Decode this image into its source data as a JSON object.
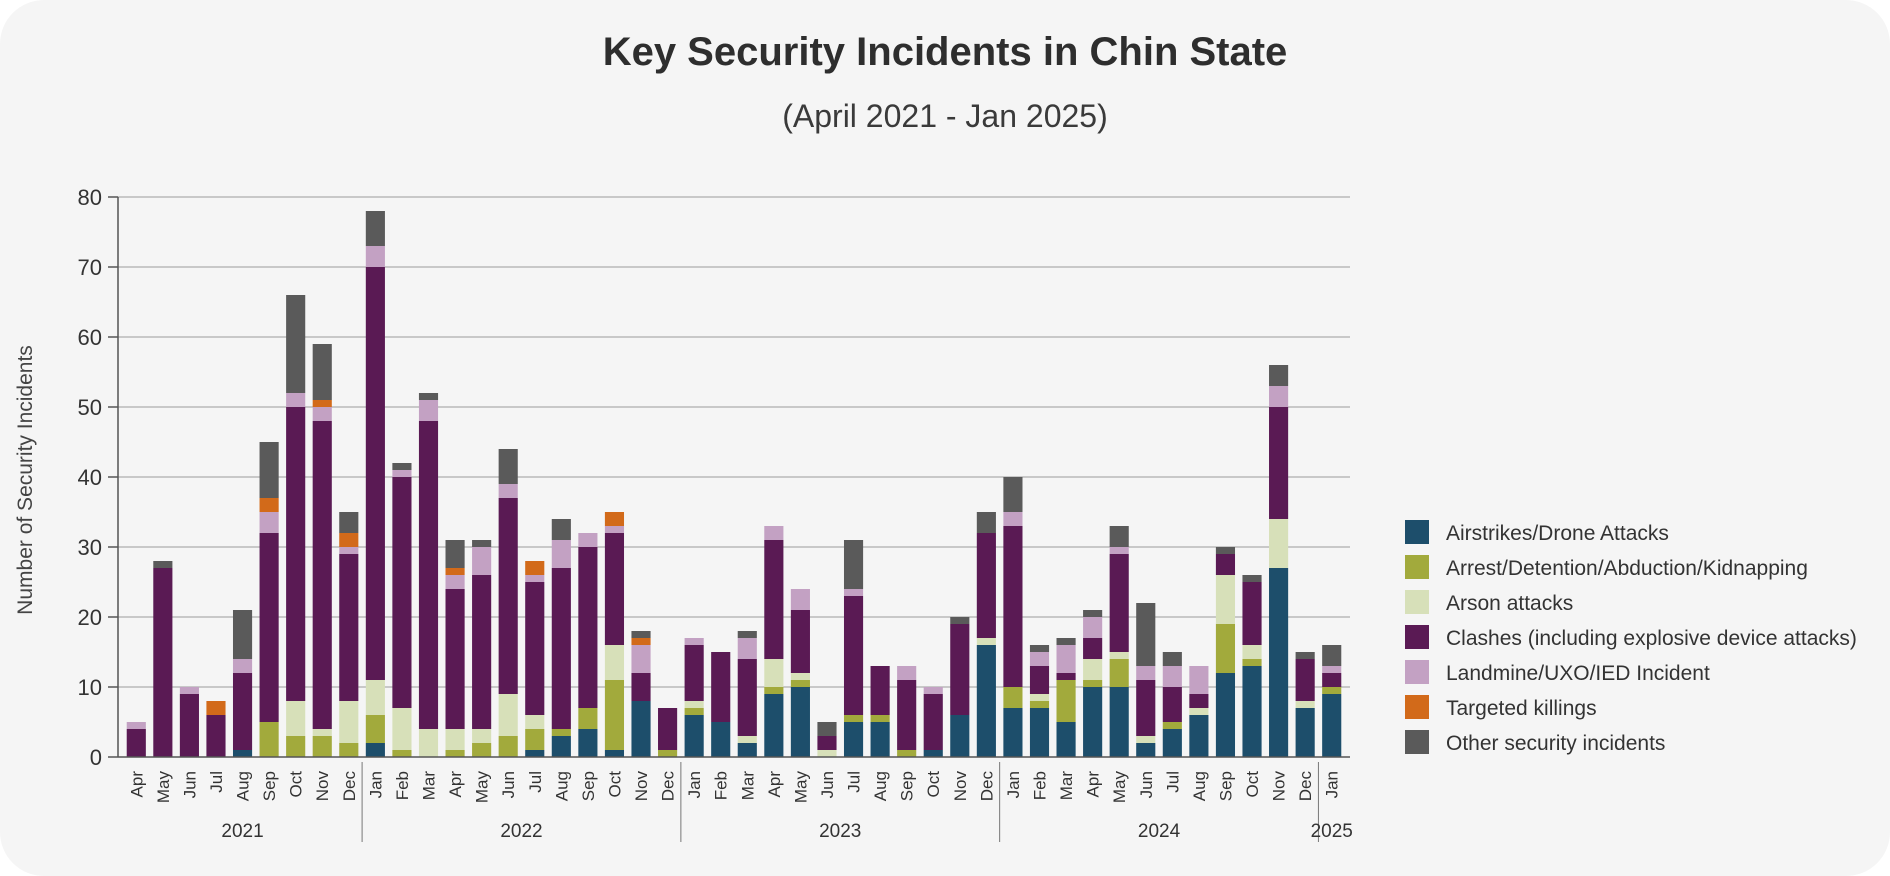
{
  "title": "Key Security Incidents in Chin State",
  "subtitle": "(April 2021 - Jan 2025)",
  "chart_data": {
    "type": "bar",
    "stacked": true,
    "title": "Key Security Incidents in Chin State",
    "subtitle": "(April 2021 - Jan 2025)",
    "xlabel": "",
    "ylabel": "Number of Security Incidents",
    "ylim": [
      0,
      80
    ],
    "yticks": [
      0,
      10,
      20,
      30,
      40,
      50,
      60,
      70,
      80
    ],
    "grid": true,
    "legend_position": "right",
    "categories": [
      "Apr",
      "May",
      "Jun",
      "Jul",
      "Aug",
      "Sep",
      "Oct",
      "Nov",
      "Dec",
      "Jan",
      "Feb",
      "Mar",
      "Apr",
      "May",
      "Jun",
      "Jul",
      "Aug",
      "Sep",
      "Oct",
      "Nov",
      "Dec",
      "Jan",
      "Feb",
      "Mar",
      "Apr",
      "May",
      "Jun",
      "Jul",
      "Aug",
      "Sep",
      "Oct",
      "Nov",
      "Dec",
      "Jan",
      "Feb",
      "Mar",
      "Apr",
      "May",
      "Jun",
      "Jul",
      "Aug",
      "Sep",
      "Oct",
      "Nov",
      "Dec",
      "Jan"
    ],
    "year_groups": [
      {
        "label": "2021",
        "count": 9
      },
      {
        "label": "2022",
        "count": 12
      },
      {
        "label": "2023",
        "count": 12
      },
      {
        "label": "2024",
        "count": 12
      },
      {
        "label": "2025",
        "count": 1
      }
    ],
    "series": [
      {
        "name": "Airstrikes/Drone Attacks",
        "color": "#1d4e6b",
        "values": [
          0,
          0,
          0,
          0,
          1,
          0,
          0,
          0,
          0,
          2,
          0,
          0,
          0,
          0,
          0,
          1,
          3,
          4,
          1,
          8,
          0,
          6,
          5,
          2,
          9,
          10,
          0,
          5,
          5,
          0,
          1,
          6,
          16,
          7,
          7,
          5,
          10,
          10,
          2,
          4,
          6,
          12,
          13,
          27,
          7,
          9
        ]
      },
      {
        "name": "Arrest/Detention/Abduction/Kidnapping",
        "color": "#a2aa3c",
        "values": [
          0,
          0,
          0,
          0,
          0,
          5,
          3,
          3,
          2,
          4,
          1,
          0,
          1,
          2,
          3,
          3,
          1,
          3,
          10,
          0,
          1,
          1,
          0,
          0,
          1,
          1,
          0,
          1,
          1,
          1,
          0,
          0,
          0,
          3,
          1,
          6,
          1,
          4,
          0,
          1,
          0,
          7,
          1,
          0,
          0,
          1
        ]
      },
      {
        "name": "Arson attacks",
        "color": "#d7e0b9",
        "values": [
          0,
          0,
          0,
          0,
          0,
          0,
          5,
          1,
          6,
          5,
          6,
          4,
          3,
          2,
          6,
          2,
          0,
          0,
          5,
          0,
          0,
          1,
          0,
          1,
          4,
          1,
          1,
          0,
          0,
          0,
          0,
          0,
          1,
          0,
          1,
          0,
          3,
          1,
          1,
          0,
          1,
          7,
          2,
          7,
          1,
          0
        ]
      },
      {
        "name": "Clashes (including explosive device attacks)",
        "color": "#5a1a54",
        "values": [
          4,
          27,
          9,
          6,
          11,
          27,
          42,
          44,
          21,
          59,
          33,
          44,
          20,
          22,
          28,
          19,
          23,
          23,
          16,
          4,
          6,
          8,
          10,
          11,
          17,
          9,
          2,
          17,
          7,
          10,
          8,
          13,
          15,
          23,
          4,
          1,
          3,
          14,
          8,
          5,
          2,
          3,
          9,
          16,
          6,
          2
        ]
      },
      {
        "name": "Landmine/UXO/IED Incident",
        "color": "#c3a1c3",
        "values": [
          1,
          0,
          1,
          0,
          2,
          3,
          2,
          2,
          1,
          3,
          1,
          3,
          2,
          4,
          2,
          1,
          4,
          2,
          1,
          4,
          0,
          1,
          0,
          3,
          2,
          3,
          0,
          1,
          0,
          2,
          1,
          0,
          0,
          2,
          2,
          4,
          3,
          1,
          2,
          3,
          4,
          0,
          0,
          3,
          0,
          1
        ]
      },
      {
        "name": "Targeted killings",
        "color": "#d26a1a",
        "values": [
          0,
          0,
          0,
          2,
          0,
          2,
          0,
          1,
          2,
          0,
          0,
          0,
          1,
          0,
          0,
          2,
          0,
          0,
          2,
          1,
          0,
          0,
          0,
          0,
          0,
          0,
          0,
          0,
          0,
          0,
          0,
          0,
          0,
          0,
          0,
          0,
          0,
          0,
          0,
          0,
          0,
          0,
          0,
          0,
          0,
          0
        ]
      },
      {
        "name": "Other security incidents",
        "color": "#5a5a5a",
        "values": [
          0,
          1,
          0,
          0,
          7,
          8,
          14,
          8,
          3,
          5,
          1,
          1,
          4,
          1,
          5,
          0,
          3,
          0,
          0,
          1,
          0,
          0,
          0,
          1,
          0,
          0,
          2,
          7,
          0,
          0,
          0,
          1,
          3,
          5,
          1,
          1,
          1,
          3,
          9,
          2,
          0,
          1,
          1,
          3,
          1,
          3
        ]
      }
    ]
  }
}
